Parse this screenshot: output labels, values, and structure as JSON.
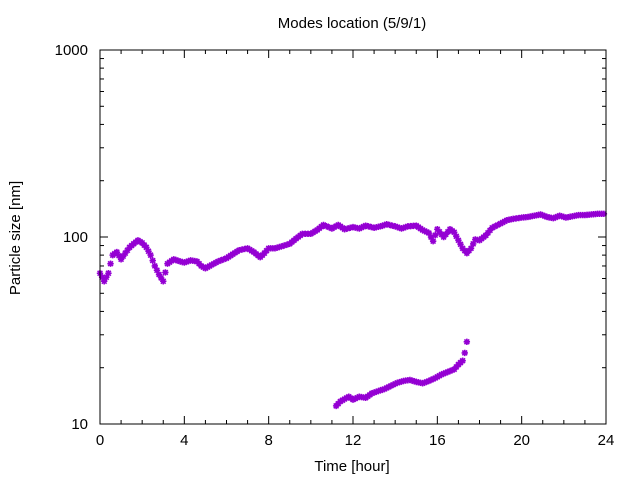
{
  "chart_data": {
    "type": "scatter",
    "title": "Modes location (5/9/1)",
    "xlabel": "Time [hour]",
    "ylabel": "Particle size [nm]",
    "xlim": [
      0,
      24
    ],
    "ylim": [
      10,
      1000
    ],
    "yscale": "log",
    "xticks": [
      "0",
      "4",
      "8",
      "12",
      "16",
      "20",
      "24"
    ],
    "yticks": [
      "10",
      "100",
      "1000"
    ],
    "grid": false,
    "legend": "none",
    "marker": "star",
    "color": "#9400d3",
    "series": [
      {
        "points": [
          [
            0.0,
            64
          ],
          [
            0.2,
            58
          ],
          [
            0.4,
            64
          ],
          [
            0.5,
            72
          ],
          [
            0.6,
            80
          ],
          [
            0.8,
            83
          ],
          [
            1.0,
            76
          ],
          [
            1.2,
            82
          ],
          [
            1.4,
            88
          ],
          [
            1.6,
            92
          ],
          [
            1.8,
            96
          ],
          [
            2.0,
            93
          ],
          [
            2.2,
            88
          ],
          [
            2.4,
            80
          ],
          [
            2.6,
            70
          ],
          [
            2.8,
            63
          ],
          [
            3.0,
            58
          ],
          [
            3.2,
            72
          ],
          [
            3.5,
            76
          ],
          [
            3.8,
            74
          ],
          [
            4.0,
            73
          ],
          [
            4.3,
            75
          ],
          [
            4.6,
            74
          ],
          [
            4.8,
            70
          ],
          [
            5.0,
            68
          ],
          [
            5.3,
            71
          ],
          [
            5.6,
            74
          ],
          [
            6.0,
            77
          ],
          [
            6.3,
            81
          ],
          [
            6.6,
            85
          ],
          [
            7.0,
            87
          ],
          [
            7.3,
            83
          ],
          [
            7.6,
            78
          ],
          [
            7.8,
            82
          ],
          [
            8.0,
            87
          ],
          [
            8.3,
            87
          ],
          [
            8.6,
            89
          ],
          [
            9.0,
            92
          ],
          [
            9.3,
            98
          ],
          [
            9.6,
            104
          ],
          [
            10.0,
            104
          ],
          [
            10.3,
            109
          ],
          [
            10.6,
            116
          ],
          [
            11.0,
            111
          ],
          [
            11.3,
            116
          ],
          [
            11.6,
            110
          ],
          [
            12.0,
            113
          ],
          [
            12.3,
            111
          ],
          [
            12.6,
            115
          ],
          [
            13.0,
            112
          ],
          [
            13.3,
            114
          ],
          [
            13.6,
            117
          ],
          [
            14.0,
            114
          ],
          [
            14.3,
            111
          ],
          [
            14.6,
            114
          ],
          [
            15.0,
            115
          ],
          [
            15.3,
            109
          ],
          [
            15.6,
            105
          ],
          [
            15.8,
            95
          ],
          [
            16.0,
            110
          ],
          [
            16.3,
            100
          ],
          [
            16.6,
            110
          ],
          [
            16.8,
            106
          ],
          [
            17.0,
            96
          ],
          [
            17.2,
            87
          ],
          [
            17.4,
            82
          ],
          [
            17.6,
            87
          ],
          [
            17.8,
            97
          ],
          [
            18.0,
            96
          ],
          [
            18.3,
            102
          ],
          [
            18.6,
            112
          ],
          [
            19.0,
            118
          ],
          [
            19.3,
            123
          ],
          [
            19.6,
            125
          ],
          [
            20.0,
            127
          ],
          [
            20.3,
            128
          ],
          [
            20.6,
            130
          ],
          [
            20.9,
            132
          ],
          [
            21.2,
            128
          ],
          [
            21.5,
            126
          ],
          [
            21.8,
            130
          ],
          [
            22.1,
            127
          ],
          [
            22.4,
            129
          ],
          [
            22.7,
            131
          ],
          [
            23.0,
            131
          ],
          [
            23.3,
            132
          ],
          [
            23.6,
            133
          ],
          [
            23.9,
            133
          ]
        ]
      },
      {
        "points": [
          [
            11.2,
            12.5
          ],
          [
            11.4,
            13.2
          ],
          [
            11.6,
            13.6
          ],
          [
            11.8,
            14.0
          ],
          [
            12.0,
            13.5
          ],
          [
            12.3,
            14.0
          ],
          [
            12.6,
            13.8
          ],
          [
            12.9,
            14.6
          ],
          [
            13.2,
            15.0
          ],
          [
            13.5,
            15.4
          ],
          [
            13.8,
            16.0
          ],
          [
            14.1,
            16.6
          ],
          [
            14.4,
            17.0
          ],
          [
            14.7,
            17.2
          ],
          [
            15.0,
            16.8
          ],
          [
            15.3,
            16.5
          ],
          [
            15.6,
            17.0
          ],
          [
            15.9,
            17.6
          ],
          [
            16.2,
            18.4
          ],
          [
            16.5,
            19.0
          ],
          [
            16.8,
            19.6
          ],
          [
            17.0,
            20.8
          ],
          [
            17.2,
            21.8
          ],
          [
            17.3,
            24.0
          ],
          [
            17.4,
            27.5
          ]
        ]
      }
    ]
  }
}
